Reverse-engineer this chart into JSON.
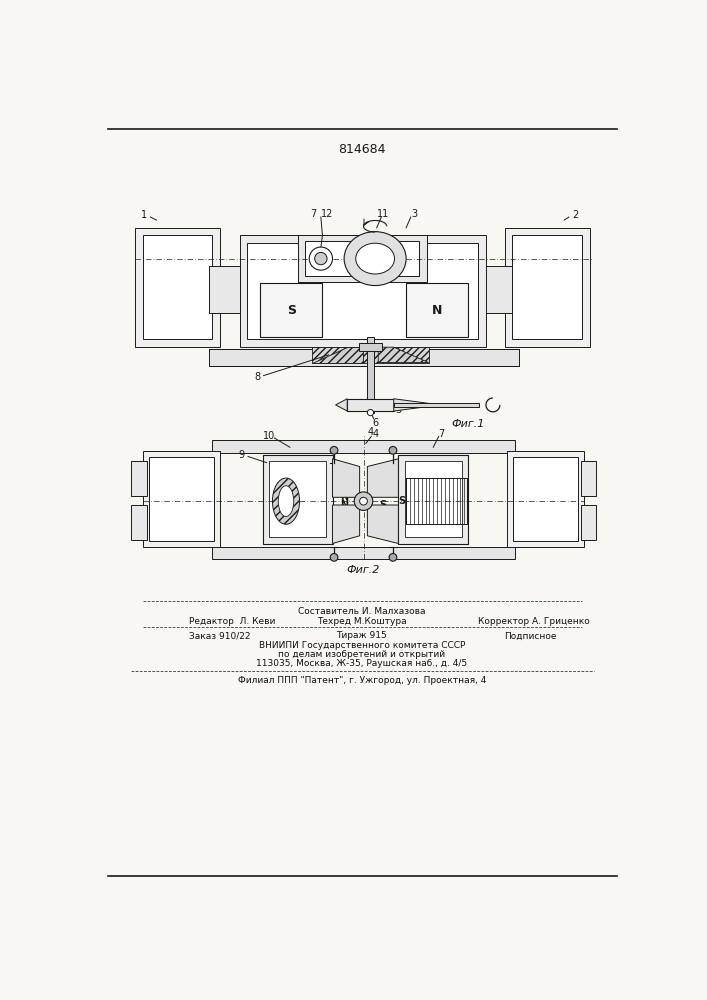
{
  "title_number": "814684",
  "fig1_label": "Фиг.1",
  "fig2_label": "Фиг.2",
  "footer_line1": "Составитель И. Малхазова",
  "footer_line2a": "Редактор  Л. Кеви",
  "footer_line2b": "Техред М.Коштура",
  "footer_line2c": "Корректор А. Гриценко",
  "footer_line3a": "Заказ 910/22",
  "footer_line3b": "Тираж 915",
  "footer_line3c": "Подписное",
  "footer_line4": "ВНИИПИ Государственного комитета СССР",
  "footer_line5": "по делам изобретений и открытий",
  "footer_line6": "113035, Москва, Ж-35, Раушская наб., д. 4/5",
  "footer_line7": "Филиал ППП \"Патент\", г. Ужгород, ул. Проектная, 4",
  "bg_color": "#f8f7f2",
  "line_color": "#1a1a1a",
  "font_size_labels": 7,
  "font_size_footer": 6.5,
  "font_size_title": 9
}
